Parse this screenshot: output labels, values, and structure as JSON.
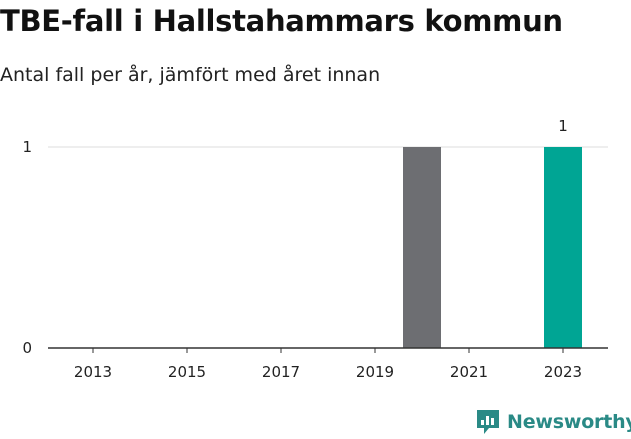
{
  "header": {
    "title": "TBE-fall i Hallstahammars kommun",
    "subtitle": "Antal fall per år, jämfört med året innan"
  },
  "brand": {
    "name": "Newsworthy"
  },
  "colors": {
    "previous": "#6d6e72",
    "latest": "#00a594",
    "grid": "#dddddd",
    "axis": "#333333",
    "brand": "#2a8a86"
  },
  "chart_data": {
    "type": "bar",
    "title": "TBE-fall i Hallstahammars kommun",
    "subtitle": "Antal fall per år, jämfört med året innan",
    "xlabel": "",
    "ylabel": "",
    "categories": [
      "2013",
      "2014",
      "2015",
      "2016",
      "2017",
      "2018",
      "2019",
      "2020",
      "2021",
      "2022",
      "2023"
    ],
    "x_tick_labels": [
      "2013",
      "2015",
      "2017",
      "2019",
      "2021",
      "2023"
    ],
    "values": [
      0,
      0,
      0,
      0,
      0,
      0,
      0,
      1,
      0,
      0,
      1
    ],
    "highlight": "2023",
    "data_labels": [
      {
        "category": "2023",
        "text": "1"
      }
    ],
    "y_ticks": [
      0,
      1
    ],
    "ylim": [
      0,
      1
    ],
    "grid": true,
    "legend": "none"
  }
}
